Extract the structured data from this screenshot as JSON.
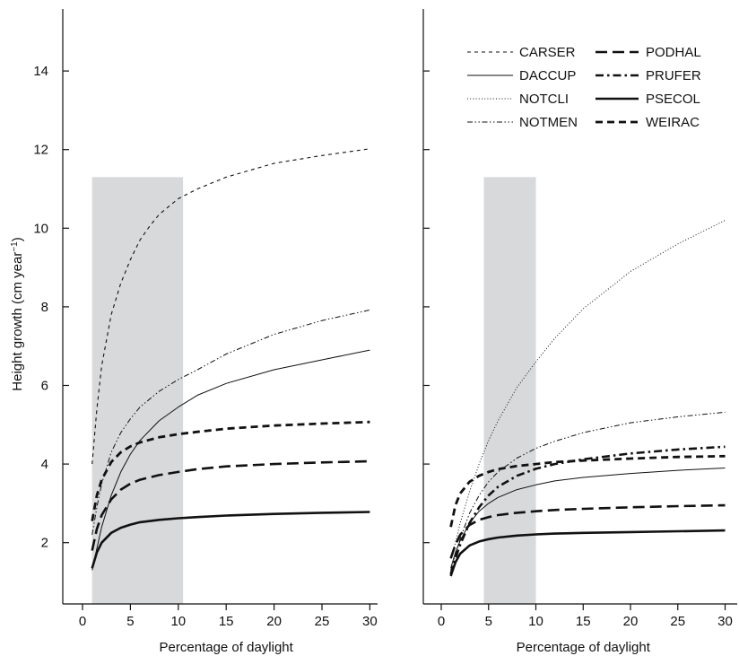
{
  "figure": {
    "ylabel": "Height growth (cm year",
    "ylabel_sup": "−1",
    "ylabel_close": ")"
  },
  "chart_data": [
    {
      "type": "line",
      "panel": "left",
      "xlabel": "Percentage of daylight",
      "ylabel": "Height growth (cm year−1)",
      "xlim": [
        -1,
        32
      ],
      "ylim": [
        0.8,
        15.5
      ],
      "xticks": [
        0,
        5,
        10,
        15,
        20,
        25,
        30
      ],
      "yticks": [
        2,
        4,
        6,
        8,
        10,
        12,
        14
      ],
      "shaded_band": {
        "x": [
          1,
          10.5
        ],
        "y_top": 11.3,
        "color": "#d8d9da"
      },
      "series": [
        {
          "name": "CARSER",
          "style": "fine-dash",
          "x": [
            1,
            1.5,
            2,
            3,
            4,
            5,
            6,
            7,
            8,
            10,
            12,
            15,
            20,
            25,
            30
          ],
          "y": [
            4.0,
            5.4,
            6.5,
            7.8,
            8.6,
            9.2,
            9.7,
            10.05,
            10.35,
            10.75,
            11.0,
            11.3,
            11.65,
            11.85,
            12.02
          ]
        },
        {
          "name": "NOTMEN",
          "style": "dash-dot-dot",
          "x": [
            1,
            1.5,
            2,
            3,
            4,
            5,
            6,
            8,
            10,
            12,
            15,
            20,
            25,
            30
          ],
          "y": [
            2.2,
            2.9,
            3.5,
            4.3,
            4.8,
            5.15,
            5.45,
            5.85,
            6.15,
            6.4,
            6.8,
            7.3,
            7.65,
            7.92
          ]
        },
        {
          "name": "DACCUP",
          "style": "thin-solid",
          "x": [
            1,
            1.5,
            2,
            3,
            4,
            5,
            6,
            8,
            10,
            12,
            15,
            20,
            25,
            30
          ],
          "y": [
            1.3,
            1.85,
            2.4,
            3.2,
            3.8,
            4.25,
            4.6,
            5.1,
            5.45,
            5.75,
            6.05,
            6.4,
            6.65,
            6.9
          ]
        },
        {
          "name": "WEIRAC",
          "style": "medium-dash",
          "x": [
            1,
            1.5,
            2,
            3,
            4,
            5,
            6,
            8,
            10,
            12,
            15,
            20,
            25,
            30
          ],
          "y": [
            2.55,
            3.2,
            3.6,
            4.05,
            4.3,
            4.45,
            4.55,
            4.68,
            4.76,
            4.82,
            4.9,
            4.98,
            5.03,
            5.07
          ]
        },
        {
          "name": "PODHAL",
          "style": "long-dash",
          "x": [
            1,
            1.5,
            2,
            3,
            4,
            5,
            6,
            8,
            10,
            12,
            15,
            20,
            25,
            30
          ],
          "y": [
            1.8,
            2.35,
            2.7,
            3.1,
            3.35,
            3.5,
            3.6,
            3.72,
            3.8,
            3.87,
            3.94,
            4.0,
            4.04,
            4.07
          ]
        },
        {
          "name": "PSECOL",
          "style": "thick-solid",
          "x": [
            1,
            1.5,
            2,
            3,
            4,
            5,
            6,
            8,
            10,
            12,
            15,
            20,
            25,
            30
          ],
          "y": [
            1.35,
            1.75,
            2.0,
            2.25,
            2.38,
            2.46,
            2.52,
            2.58,
            2.62,
            2.65,
            2.69,
            2.73,
            2.76,
            2.78
          ]
        }
      ]
    },
    {
      "type": "line",
      "panel": "right",
      "xlabel": "Percentage of daylight",
      "xlim": [
        -1,
        32
      ],
      "ylim": [
        0.8,
        15.5
      ],
      "xticks": [
        0,
        5,
        10,
        15,
        20,
        25,
        30
      ],
      "yticks": [
        2,
        4,
        6,
        8,
        10,
        12,
        14
      ],
      "shaded_band": {
        "x": [
          4.5,
          10
        ],
        "y_top": 11.3,
        "color": "#d8d9da"
      },
      "legend_position": "top-right",
      "legend": [
        {
          "name": "CARSER",
          "style": "fine-dash"
        },
        {
          "name": "PODHAL",
          "style": "long-dash"
        },
        {
          "name": "DACCUP",
          "style": "thin-solid"
        },
        {
          "name": "PRUFER",
          "style": "dash-dot"
        },
        {
          "name": "NOTCLI",
          "style": "dotted"
        },
        {
          "name": "PSECOL",
          "style": "thick-solid"
        },
        {
          "name": "NOTMEN",
          "style": "dash-dot-dot"
        },
        {
          "name": "WEIRAC",
          "style": "medium-dash"
        }
      ],
      "series": [
        {
          "name": "NOTCLI",
          "style": "dotted",
          "x": [
            1,
            1.5,
            2,
            3,
            4,
            5,
            6,
            8,
            10,
            12,
            15,
            20,
            25,
            30
          ],
          "y": [
            1.6,
            2.0,
            2.5,
            3.3,
            4.0,
            4.6,
            5.1,
            5.95,
            6.6,
            7.2,
            7.95,
            8.9,
            9.6,
            10.2
          ]
        },
        {
          "name": "NOTMEN",
          "style": "dash-dot-dot",
          "x": [
            1,
            1.5,
            2,
            3,
            4,
            5,
            6,
            8,
            10,
            12,
            15,
            20,
            25,
            30
          ],
          "y": [
            1.3,
            1.7,
            2.1,
            2.75,
            3.2,
            3.55,
            3.8,
            4.15,
            4.4,
            4.58,
            4.8,
            5.05,
            5.2,
            5.32
          ]
        },
        {
          "name": "PRUFER",
          "style": "dash-dot",
          "x": [
            1,
            1.5,
            2,
            3,
            4,
            5,
            6,
            8,
            10,
            12,
            15,
            20,
            25,
            30
          ],
          "y": [
            1.2,
            1.6,
            1.95,
            2.5,
            2.9,
            3.2,
            3.42,
            3.7,
            3.88,
            4.0,
            4.12,
            4.27,
            4.37,
            4.44
          ]
        },
        {
          "name": "WEIRAC",
          "style": "medium-dash",
          "x": [
            1,
            1.5,
            2,
            3,
            4,
            5,
            6,
            8,
            10,
            12,
            15,
            20,
            25,
            30
          ],
          "y": [
            2.4,
            2.95,
            3.25,
            3.55,
            3.7,
            3.8,
            3.87,
            3.95,
            4.0,
            4.05,
            4.09,
            4.14,
            4.18,
            4.2
          ]
        },
        {
          "name": "DACCUP",
          "style": "thin-solid",
          "x": [
            1,
            1.5,
            2,
            3,
            4,
            5,
            6,
            8,
            10,
            12,
            15,
            20,
            25,
            30
          ],
          "y": [
            1.35,
            1.75,
            2.05,
            2.5,
            2.8,
            3.0,
            3.15,
            3.35,
            3.47,
            3.57,
            3.66,
            3.76,
            3.84,
            3.9
          ]
        },
        {
          "name": "PODHAL",
          "style": "long-dash",
          "x": [
            1,
            1.5,
            2,
            3,
            4,
            5,
            6,
            8,
            10,
            12,
            15,
            20,
            25,
            30
          ],
          "y": [
            1.6,
            1.95,
            2.2,
            2.45,
            2.58,
            2.65,
            2.7,
            2.76,
            2.8,
            2.83,
            2.86,
            2.9,
            2.93,
            2.95
          ]
        },
        {
          "name": "PSECOL",
          "style": "thick-solid",
          "x": [
            1,
            1.5,
            2,
            3,
            4,
            5,
            6,
            8,
            10,
            12,
            15,
            20,
            25,
            30
          ],
          "y": [
            1.15,
            1.5,
            1.72,
            1.93,
            2.03,
            2.09,
            2.13,
            2.18,
            2.21,
            2.23,
            2.25,
            2.27,
            2.29,
            2.31
          ]
        }
      ]
    }
  ]
}
